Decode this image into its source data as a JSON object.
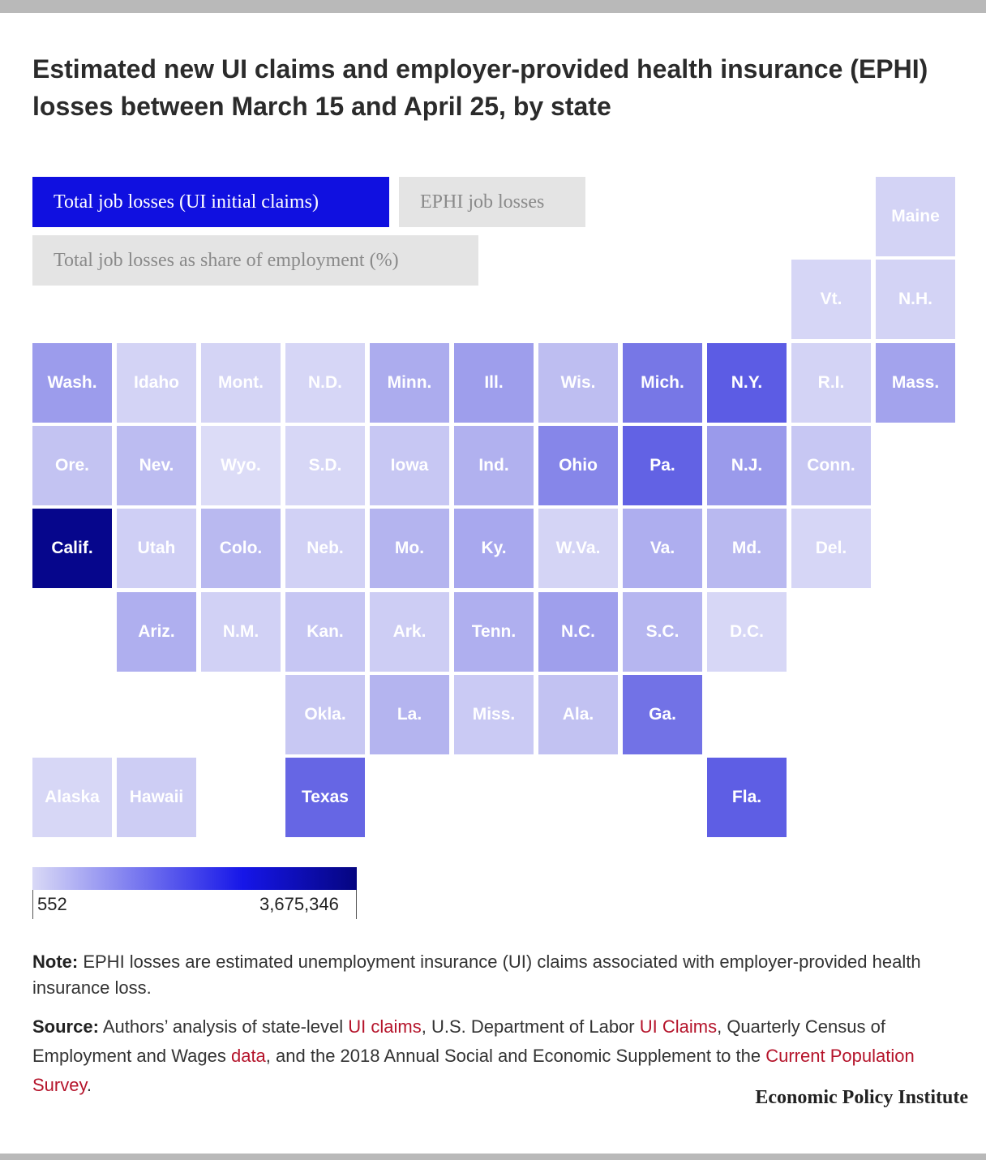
{
  "title": "Estimated new UI claims and employer-provided health insurance (EPHI) losses between March 15 and April 25, by state",
  "tabs": [
    {
      "label": "Total job losses (UI initial claims)",
      "active": true
    },
    {
      "label": "EPHI job losses",
      "active": false
    },
    {
      "label": "Total job losses as share of employment (%)",
      "active": false
    }
  ],
  "colors": {
    "scale_low": "#d9d9f6",
    "scale_mid": "#1616e8",
    "scale_high": "#050580",
    "active_tab": "#1010e0",
    "inactive_tab": "#e4e4e4",
    "link": "#b5142b"
  },
  "map": {
    "states": [
      {
        "label": "Maine",
        "fill": "#d3d3f5"
      },
      {
        "label": "Vt.",
        "fill": "#d6d6f6"
      },
      {
        "label": "N.H.",
        "fill": "#d3d3f5"
      },
      {
        "label": "Wash.",
        "fill": "#9c9cec"
      },
      {
        "label": "Idaho",
        "fill": "#d3d3f5"
      },
      {
        "label": "Mont.",
        "fill": "#d4d4f5"
      },
      {
        "label": "N.D.",
        "fill": "#d6d6f6"
      },
      {
        "label": "Minn.",
        "fill": "#acacee"
      },
      {
        "label": "Ill.",
        "fill": "#9e9eec"
      },
      {
        "label": "Wis.",
        "fill": "#bebef1"
      },
      {
        "label": "Mich.",
        "fill": "#7777e6"
      },
      {
        "label": "N.Y.",
        "fill": "#5c5ce4"
      },
      {
        "label": "R.I.",
        "fill": "#d3d3f5"
      },
      {
        "label": "Mass.",
        "fill": "#a3a3ed"
      },
      {
        "label": "Ore.",
        "fill": "#c3c3f2"
      },
      {
        "label": "Nev.",
        "fill": "#bcbcf1"
      },
      {
        "label": "Wyo.",
        "fill": "#dcdcf7"
      },
      {
        "label": "S.D.",
        "fill": "#d7d7f6"
      },
      {
        "label": "Iowa",
        "fill": "#c7c7f3"
      },
      {
        "label": "Ind.",
        "fill": "#b1b1ef"
      },
      {
        "label": "Ohio",
        "fill": "#8686e9"
      },
      {
        "label": "Pa.",
        "fill": "#6262e4"
      },
      {
        "label": "N.J.",
        "fill": "#9a9aeb"
      },
      {
        "label": "Conn.",
        "fill": "#c7c7f3"
      },
      {
        "label": "Calif.",
        "fill": "#06068c"
      },
      {
        "label": "Utah",
        "fill": "#cfcff5"
      },
      {
        "label": "Colo.",
        "fill": "#b9b9f0"
      },
      {
        "label": "Neb.",
        "fill": "#d1d1f5"
      },
      {
        "label": "Mo.",
        "fill": "#b4b4ef"
      },
      {
        "label": "Ky.",
        "fill": "#a8a8ee"
      },
      {
        "label": "W.Va.",
        "fill": "#d4d4f5"
      },
      {
        "label": "Va.",
        "fill": "#aeaeef"
      },
      {
        "label": "Md.",
        "fill": "#b9b9f0"
      },
      {
        "label": "Del.",
        "fill": "#d6d6f6"
      },
      {
        "label": "Ariz.",
        "fill": "#afafef"
      },
      {
        "label": "N.M.",
        "fill": "#d1d1f5"
      },
      {
        "label": "Kan.",
        "fill": "#c6c6f3"
      },
      {
        "label": "Ark.",
        "fill": "#cdcdf4"
      },
      {
        "label": "Tenn.",
        "fill": "#afafef"
      },
      {
        "label": "N.C.",
        "fill": "#9f9fec"
      },
      {
        "label": "S.C.",
        "fill": "#b6b6f0"
      },
      {
        "label": "D.C.",
        "fill": "#d7d7f6"
      },
      {
        "label": "Okla.",
        "fill": "#c8c8f3"
      },
      {
        "label": "La.",
        "fill": "#b4b4ef"
      },
      {
        "label": "Miss.",
        "fill": "#cacaf4"
      },
      {
        "label": "Ala.",
        "fill": "#c2c2f2"
      },
      {
        "label": "Ga.",
        "fill": "#7272e6"
      },
      {
        "label": "Alaska",
        "fill": "#d7d7f6"
      },
      {
        "label": "Hawaii",
        "fill": "#cdcdf4"
      },
      {
        "label": "Texas",
        "fill": "#6666e4"
      },
      {
        "label": "Fla.",
        "fill": "#5e5ee4"
      }
    ]
  },
  "legend": {
    "min_label": "552",
    "max_label": "3,675,346"
  },
  "note": {
    "label": "Note:",
    "text": " EPHI losses are estimated unemployment insurance (UI) claims associated with employer-provided health insurance loss."
  },
  "source": {
    "label": "Source:",
    "t1": " Authors’ analysis of state-level ",
    "link1": "UI claims",
    "t2": ", U.S. Department of Labor ",
    "link2": "UI Claims",
    "t3": ", Quarterly Census of Employment and Wages ",
    "link3": "data",
    "t4": ", and the 2018 Annual Social and Economic Supplement to the ",
    "link4": "Current Population Survey",
    "t5": "."
  },
  "brand": "Economic Policy Institute"
}
